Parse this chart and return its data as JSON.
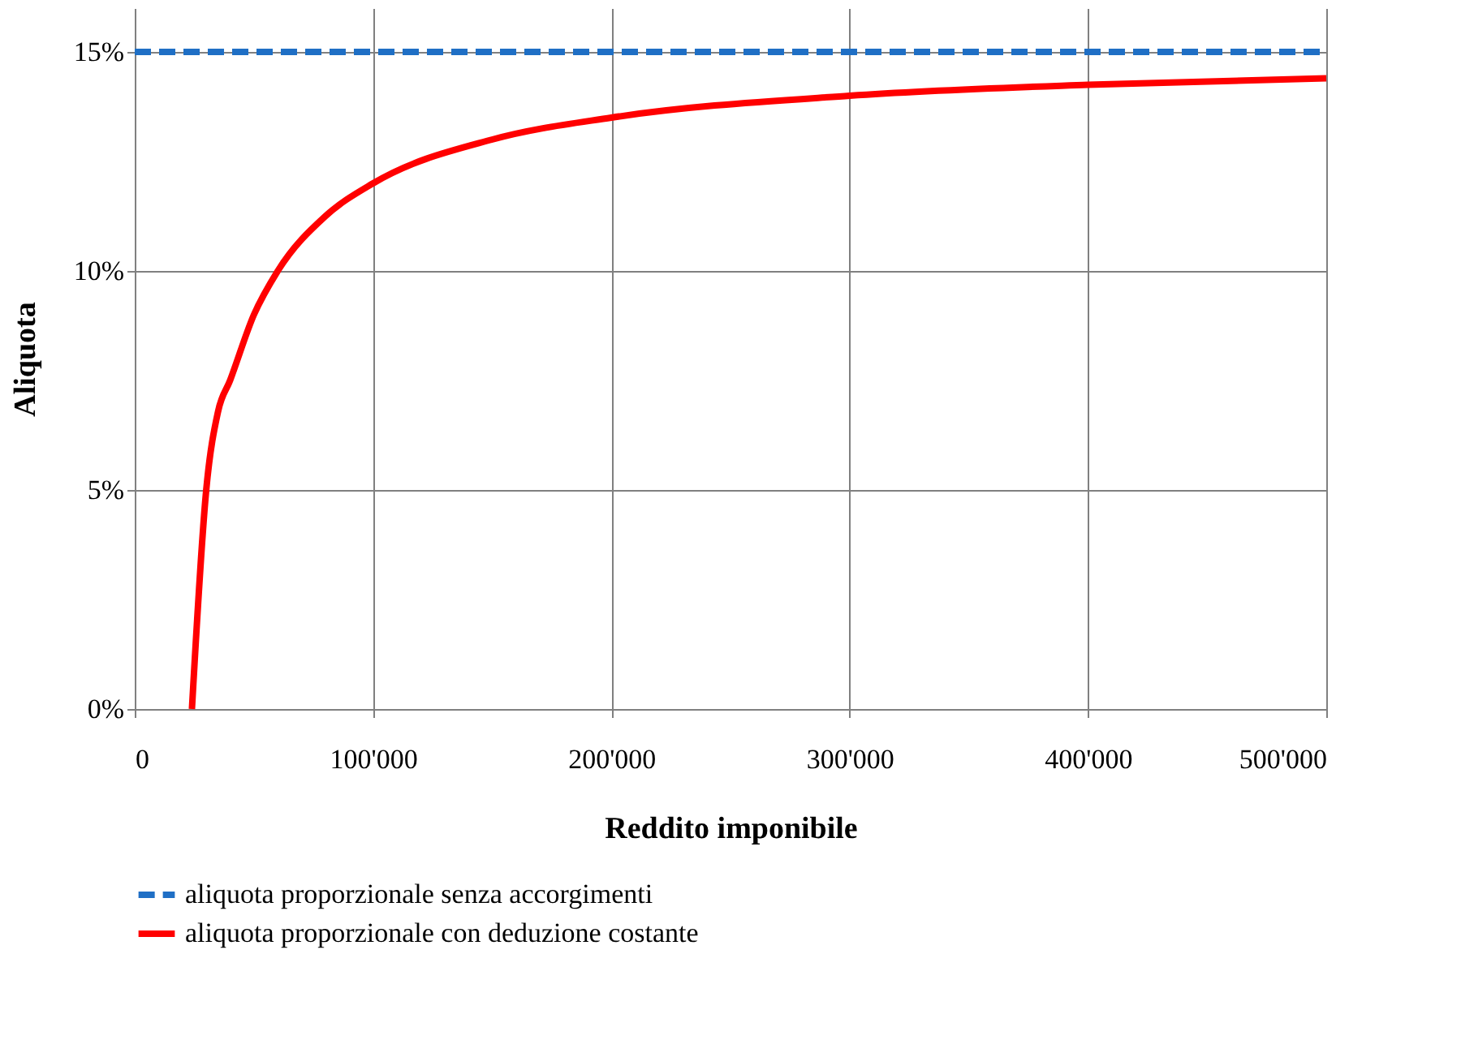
{
  "chart_data": {
    "type": "line",
    "xlabel": "Reddito imponibile",
    "ylabel": "Aliquota",
    "xlim": [
      0,
      500000
    ],
    "xticks": [
      {
        "value": 0,
        "label": "0"
      },
      {
        "value": 100000,
        "label": "100'000"
      },
      {
        "value": 200000,
        "label": "200'000"
      },
      {
        "value": 300000,
        "label": "300'000"
      },
      {
        "value": 400000,
        "label": "400'000"
      },
      {
        "value": 500000,
        "label": "500'000"
      }
    ],
    "ylim": [
      0,
      16
    ],
    "yticks": [
      {
        "value": 0,
        "label": "0%"
      },
      {
        "value": 5,
        "label": "5%"
      },
      {
        "value": 10,
        "label": "10%"
      },
      {
        "value": 15,
        "label": "15%"
      }
    ],
    "grid": true,
    "legend": "bottom",
    "marker": "none",
    "series": [
      {
        "name": "aliquota proporzionale senza accorgimenti",
        "color": "#1f6fc5",
        "line_style": "dashed",
        "x": [
          0,
          500000
        ],
        "values": [
          15,
          15
        ]
      },
      {
        "name": "aliquota proporzionale con deduzione costante",
        "color": "#ff0000",
        "line_style": "solid",
        "x": [
          24000,
          30000,
          35000,
          40000,
          50000,
          60000,
          80000,
          100000,
          150000,
          200000,
          300000,
          400000,
          500000
        ],
        "values": [
          0,
          5,
          6.8,
          7.5,
          9,
          10,
          11.25,
          12,
          13,
          13.5,
          14,
          14.25,
          14.4
        ]
      }
    ]
  }
}
